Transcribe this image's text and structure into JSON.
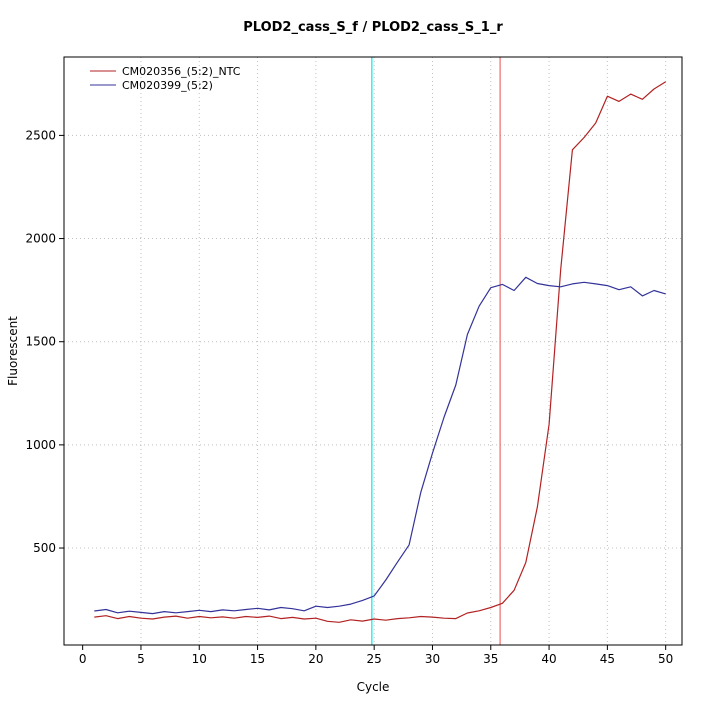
{
  "chart_data": {
    "type": "line",
    "title": "PLOD2_cass_S_f / PLOD2_cass_S_1_r",
    "xlabel": "Cycle",
    "ylabel": "Fluorescent",
    "xlim": [
      -1.6,
      51.4
    ],
    "ylim": [
      30,
      2880
    ],
    "xticks": [
      0,
      5,
      10,
      15,
      20,
      25,
      30,
      35,
      40,
      45,
      50
    ],
    "yticks": [
      500,
      1000,
      1500,
      2000,
      2500
    ],
    "grid": true,
    "grid_color": "#bfbfbf",
    "legend_position": "top-left",
    "vlines": [
      {
        "x": 24.8,
        "color": "#00e8e8",
        "name": "threshold-line-cyan"
      },
      {
        "x": 35.8,
        "color": "#ee6a6a",
        "name": "threshold-line-salmon"
      }
    ],
    "x": [
      1,
      2,
      3,
      4,
      5,
      6,
      7,
      8,
      9,
      10,
      11,
      12,
      13,
      14,
      15,
      16,
      17,
      18,
      19,
      20,
      21,
      22,
      23,
      24,
      25,
      26,
      27,
      28,
      29,
      30,
      31,
      32,
      33,
      34,
      35,
      36,
      37,
      38,
      39,
      40,
      41,
      42,
      43,
      44,
      45,
      46,
      47,
      48,
      49,
      50
    ],
    "series": [
      {
        "name": "CM020356_(5:2)_NTC",
        "color": "#b22222",
        "values": [
          165,
          172,
          158,
          168,
          160,
          156,
          165,
          170,
          160,
          168,
          162,
          166,
          160,
          168,
          164,
          170,
          158,
          164,
          156,
          160,
          145,
          140,
          152,
          146,
          156,
          150,
          158,
          162,
          168,
          165,
          160,
          158,
          185,
          196,
          212,
          232,
          295,
          430,
          700,
          1100,
          1850,
          2430,
          2490,
          2560,
          2690,
          2665,
          2700,
          2675,
          2725,
          2760
        ]
      },
      {
        "name": "CM020399_(5:2)",
        "color": "#333399",
        "values": [
          195,
          202,
          186,
          194,
          188,
          182,
          192,
          186,
          192,
          198,
          192,
          200,
          196,
          202,
          208,
          200,
          212,
          206,
          196,
          218,
          212,
          218,
          228,
          246,
          268,
          345,
          432,
          515,
          770,
          960,
          1135,
          1290,
          1535,
          1672,
          1762,
          1778,
          1748,
          1812,
          1782,
          1772,
          1766,
          1780,
          1788,
          1780,
          1772,
          1752,
          1766,
          1722,
          1748,
          1732
        ]
      }
    ]
  }
}
